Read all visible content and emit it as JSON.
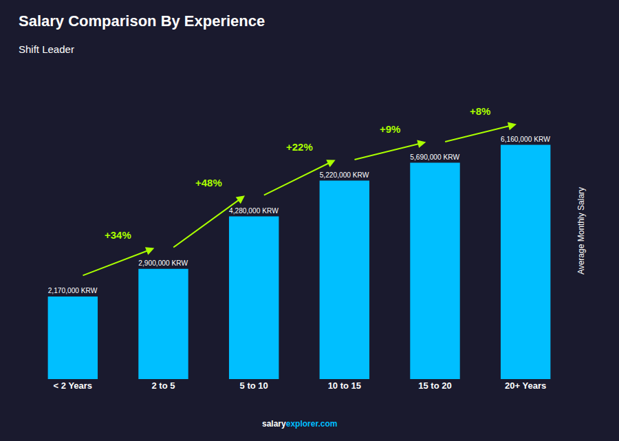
{
  "chart_data": {
    "type": "bar",
    "title": "Salary Comparison By Experience",
    "subtitle": "Shift Leader",
    "ylabel": "Average Monthly Salary",
    "categories": [
      "< 2 Years",
      "2 to 5",
      "5 to 10",
      "10 to 15",
      "15 to 20",
      "20+ Years"
    ],
    "values": [
      2170000,
      2900000,
      4280000,
      5220000,
      5690000,
      6160000
    ],
    "value_labels": [
      "2,170,000 KRW",
      "2,900,000 KRW",
      "4,280,000 KRW",
      "5,220,000 KRW",
      "5,690,000 KRW",
      "6,160,000 KRW"
    ],
    "data_labels": true,
    "color": "#00bfff",
    "ylim": [
      0,
      7800000
    ],
    "tick_labels": "x",
    "grid": false,
    "annotations": [
      {
        "text": "+34%",
        "color": "#aaff00"
      },
      {
        "text": "+48%",
        "color": "#aaff00"
      },
      {
        "text": "+22%",
        "color": "#aaff00"
      },
      {
        "text": "+9%",
        "color": "#aaff00"
      },
      {
        "text": "+8%",
        "color": "#aaff00"
      }
    ],
    "watermark": [
      {
        "text": "salary",
        "color": "#ffffff"
      },
      {
        "text": "explorer.com",
        "color": "#00bfff"
      }
    ]
  }
}
